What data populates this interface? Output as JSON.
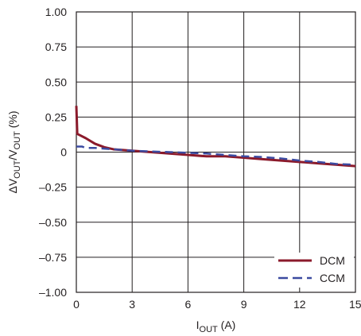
{
  "chart_data": {
    "type": "line",
    "xlabel_main": "I",
    "xlabel_sub": "OUT",
    "xlabel_unit": " (A)",
    "ylabel": "ΔV₀ᵤₜ/V₀ᵤₜ (%)",
    "ylabel_parts": {
      "delta": "ΔV",
      "sub1": "OUT",
      "slash": "/V",
      "sub2": "OUT",
      "unit": " (%)"
    },
    "xlim": [
      0,
      15
    ],
    "ylim": [
      -1.0,
      1.0
    ],
    "x_ticks": [
      "0",
      "3",
      "6",
      "9",
      "12",
      "15"
    ],
    "x_tick_values": [
      0,
      3,
      6,
      9,
      12,
      15
    ],
    "y_ticks": [
      "1.00",
      "0.75",
      "0.50",
      "0.25",
      "0",
      "–0.25",
      "–0.50",
      "–0.75",
      "–1.00"
    ],
    "y_tick_values": [
      1.0,
      0.75,
      0.5,
      0.25,
      0,
      -0.25,
      -0.5,
      -0.75,
      -1.0
    ],
    "grid": true,
    "legend_position": "bottom-right",
    "series": [
      {
        "name": "DCM",
        "color": "#8b1a2b",
        "dash": "solid",
        "x": [
          0,
          0.02,
          0.05,
          0.2,
          0.5,
          1.0,
          1.5,
          2.0,
          3.0,
          4.0,
          5.0,
          6.0,
          7.0,
          8.0,
          9.0,
          10.0,
          11.0,
          12.0,
          13.0,
          14.0,
          15.0
        ],
        "y": [
          0.33,
          0.25,
          0.13,
          0.12,
          0.1,
          0.06,
          0.035,
          0.02,
          0.01,
          0.0,
          -0.01,
          -0.02,
          -0.03,
          -0.03,
          -0.04,
          -0.05,
          -0.06,
          -0.07,
          -0.08,
          -0.09,
          -0.1
        ]
      },
      {
        "name": "CCM",
        "color": "#3b4aa0",
        "dash": "dashed",
        "x": [
          0,
          0.3,
          0.5,
          1.0,
          2.0,
          3.0,
          4.0,
          5.0,
          6.0,
          7.0,
          8.0,
          9.0,
          10.0,
          11.0,
          12.0,
          13.0,
          14.0,
          15.0
        ],
        "y": [
          0.04,
          0.04,
          0.03,
          0.03,
          0.02,
          0.01,
          0.005,
          0.0,
          -0.005,
          -0.01,
          -0.02,
          -0.03,
          -0.035,
          -0.045,
          -0.06,
          -0.07,
          -0.085,
          -0.09
        ]
      }
    ]
  }
}
